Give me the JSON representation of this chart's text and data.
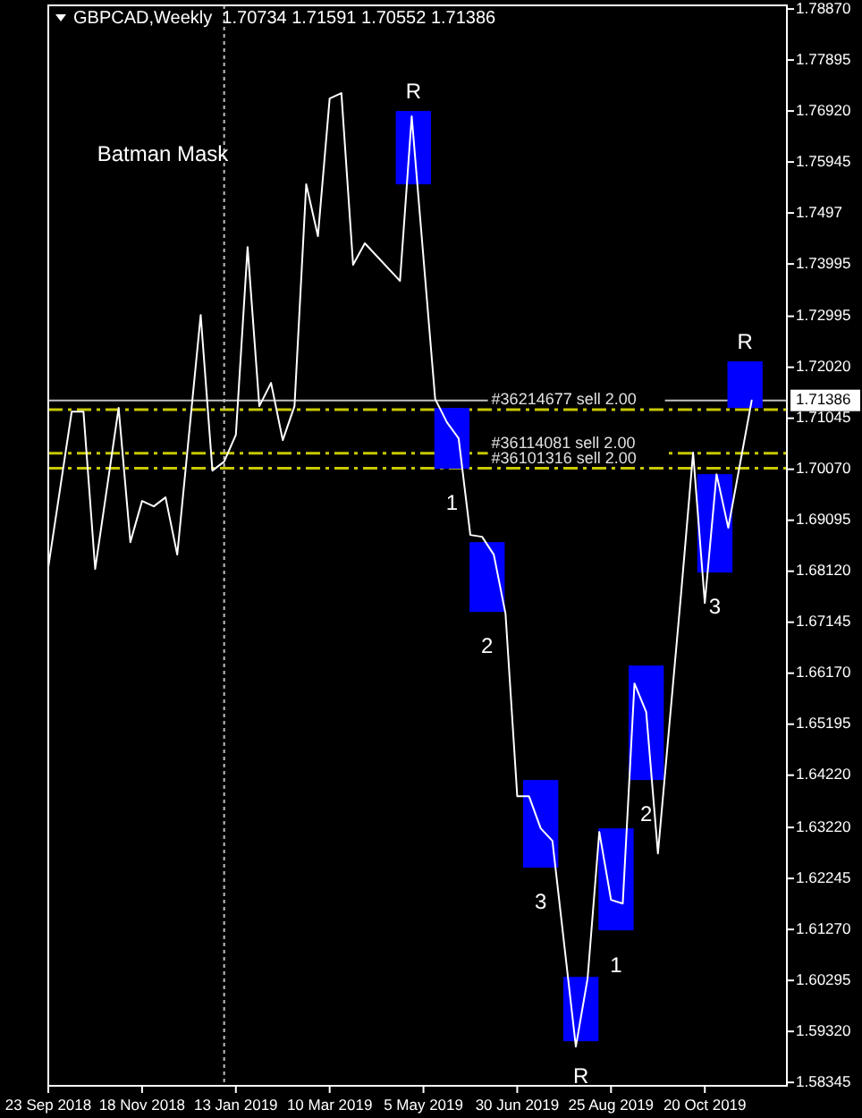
{
  "chart_data": {
    "type": "line",
    "title": "GBPCAD,Weekly  1.70734 1.71591 1.70552 1.71386",
    "annotations": [
      "Batman Mask",
      {
        "text": "R",
        "x": "2019-04-29",
        "y": 1.7692
      },
      {
        "text": "1",
        "x": "2019-05-22",
        "y": 1.70079
      },
      {
        "text": "2",
        "x": "2019-06-12",
        "y": 1.67342
      },
      {
        "text": "3",
        "x": "2019-07-14",
        "y": 1.62451
      },
      {
        "text": "R",
        "x": "2019-08-07",
        "y": 1.59132
      },
      {
        "text": "1",
        "x": "2019-08-28",
        "y": 1.61253
      },
      {
        "text": "2",
        "x": "2019-09-15",
        "y": 1.64127
      },
      {
        "text": "3",
        "x": "2019-10-26",
        "y": 1.68095
      },
      {
        "text": "R",
        "x": "2019-11-13",
        "y": 1.72131
      }
    ],
    "xlim": [
      "2018-09-23",
      "2019-12-08"
    ],
    "xticks": [
      {
        "value": "2018-09-23",
        "label": "23 Sep 2018"
      },
      {
        "value": "2018-11-18",
        "label": "18 Nov 2018"
      },
      {
        "value": "2019-01-13",
        "label": "13 Jan 2019"
      },
      {
        "value": "2019-03-10",
        "label": "10 Mar 2019"
      },
      {
        "value": "2019-05-05",
        "label": "5 May 2019"
      },
      {
        "value": "2019-06-30",
        "label": "30 Jun 2019"
      },
      {
        "value": "2019-08-25",
        "label": "25 Aug 2019"
      },
      {
        "value": "2019-10-20",
        "label": "20 Oct 2019"
      }
    ],
    "ylim": [
      1.5828,
      1.7894
    ],
    "yticks": [
      {
        "value": 1.7887,
        "label": "1.78870"
      },
      1.77895,
      {
        "value": 1.7692,
        "label": "1.76920"
      },
      1.75945,
      1.7497,
      1.73995,
      1.72995,
      {
        "value": 1.7202,
        "label": "1.72020"
      },
      1.71045,
      {
        "value": 1.7007,
        "label": "1.70070"
      },
      1.69095,
      {
        "value": 1.6812,
        "label": "1.68120"
      },
      1.67145,
      {
        "value": 1.6617,
        "label": "1.66170"
      },
      1.65195,
      {
        "value": 1.6422,
        "label": "1.64220"
      },
      {
        "value": 1.6322,
        "label": "1.63220"
      },
      1.62245,
      {
        "value": 1.6127,
        "label": "1.61270"
      },
      1.60295,
      {
        "value": 1.5932,
        "label": "1.59320"
      },
      1.58345
    ],
    "series": [
      {
        "type": "bar",
        "color": "#0000ff",
        "x": [
          "2019-04-29",
          "2019-05-22",
          "2019-06-12",
          "2019-07-14",
          "2019-08-07",
          "2019-08-28",
          "2019-09-15",
          "2019-10-26",
          "2019-11-13"
        ],
        "base": [
          1.75518,
          1.70079,
          1.67342,
          1.62451,
          1.59132,
          1.61253,
          1.64127,
          1.68095,
          1.71242
        ],
        "values": [
          0.01402,
          0.01163,
          0.01334,
          0.01676,
          0.01231,
          0.0195,
          0.02189,
          0.01881,
          0.00889
        ]
      },
      {
        "color": "#ffffff",
        "x": [
          "2018-09-23",
          "2018-10-07",
          "2018-10-14",
          "2018-10-21",
          "2018-11-04",
          "2018-11-11",
          "2018-11-18",
          "2018-11-25",
          "2018-12-02",
          "2018-12-09",
          "2018-12-23",
          "2018-12-30",
          "2019-01-06",
          "2019-01-13",
          "2019-01-20",
          "2019-01-27",
          "2019-02-03",
          "2019-02-10",
          "2019-02-17",
          "2019-02-24",
          "2019-03-03",
          "2019-03-10",
          "2019-03-17",
          "2019-03-24",
          "2019-03-31",
          "2019-04-21",
          "2019-04-28",
          "2019-05-12",
          "2019-05-19",
          "2019-05-26",
          "2019-06-02",
          "2019-06-09",
          "2019-06-16",
          "2019-06-23",
          "2019-06-30",
          "2019-07-07",
          "2019-07-14",
          "2019-07-21",
          "2019-08-04",
          "2019-08-11",
          "2019-08-18",
          "2019-08-25",
          "2019-09-01",
          "2019-09-08",
          "2019-09-15",
          "2019-09-22",
          "2019-10-06",
          "2019-10-13",
          "2019-10-20",
          "2019-10-27",
          "2019-11-03",
          "2019-11-17"
        ],
        "values": [
          1.68197,
          1.71173,
          1.71173,
          1.68163,
          1.71242,
          1.68676,
          1.69463,
          1.6936,
          1.69531,
          1.68437,
          1.7302,
          1.70044,
          1.70215,
          1.70729,
          1.7432,
          1.71276,
          1.71721,
          1.70626,
          1.71276,
          1.75518,
          1.74526,
          1.7716,
          1.77262,
          1.73979,
          1.7439,
          1.7367,
          1.76818,
          1.71413,
          1.70968,
          1.7066,
          1.68813,
          1.68779,
          1.68437,
          1.67308,
          1.63819,
          1.63819,
          1.63203,
          1.62964,
          1.5903,
          1.6033,
          1.63135,
          1.61835,
          1.61766,
          1.65974,
          1.65426,
          1.62724,
          1.67753,
          1.70387,
          1.67513,
          1.69976,
          1.6895,
          1.71386
        ]
      }
    ],
    "ref_lines": [
      {
        "axis": "y",
        "value": 1.71208,
        "label": "#36214677 sell 2.00",
        "color": "#c8c800",
        "line_style": "dashed"
      },
      {
        "axis": "y",
        "value": 1.70375,
        "label": "#36114081 sell 2.00",
        "color": "#c8c800",
        "line_style": "dashed"
      },
      {
        "axis": "y",
        "value": 1.70089,
        "label": "#36101316 sell 2.00",
        "color": "#c8c800",
        "line_style": "dashed"
      },
      {
        "axis": "y",
        "value": 1.71386,
        "label": "1.71386",
        "color": "#c0c0c0",
        "line_style": "solid"
      },
      {
        "axis": "x",
        "value": "2019-01-06",
        "color": "#c0c0c0",
        "line_style": "dotted"
      }
    ]
  }
}
